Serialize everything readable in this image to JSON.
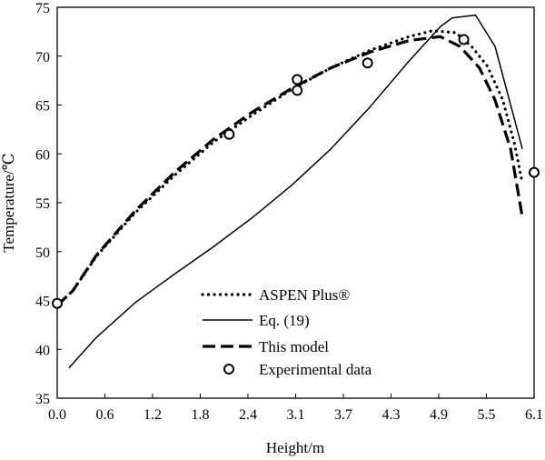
{
  "chart_data": {
    "type": "line",
    "title": "",
    "xlabel": "Height/m",
    "ylabel": "Temperature/℃",
    "xlim": [
      0.0,
      6.1
    ],
    "ylim": [
      35,
      75
    ],
    "xticks": [
      "0.0",
      "0.6",
      "1.2",
      "1.8",
      "2.4",
      "3.1",
      "3.7",
      "4.3",
      "4.9",
      "5.5",
      "6.1"
    ],
    "yticks": [
      "35",
      "40",
      "45",
      "50",
      "55",
      "60",
      "65",
      "70",
      "75"
    ],
    "grid": false,
    "legend_position": "bottom-center",
    "series": [
      {
        "name": "ASPEN Plus®",
        "style": "dotted",
        "points": [
          [
            0.0,
            44.5
          ],
          [
            0.2,
            46.0
          ],
          [
            0.5,
            49.5
          ],
          [
            1.0,
            54.0
          ],
          [
            1.5,
            57.8
          ],
          [
            2.0,
            61.2
          ],
          [
            2.5,
            64.0
          ],
          [
            3.0,
            66.6
          ],
          [
            3.5,
            68.8
          ],
          [
            4.0,
            70.6
          ],
          [
            4.5,
            72.0
          ],
          [
            4.8,
            72.6
          ],
          [
            5.1,
            72.4
          ],
          [
            5.3,
            71.0
          ],
          [
            5.5,
            69.0
          ],
          [
            5.7,
            65.5
          ],
          [
            5.85,
            61.0
          ],
          [
            5.95,
            57.0
          ]
        ]
      },
      {
        "name": "Eq. (19)",
        "style": "solid",
        "points": [
          [
            0.15,
            38.1
          ],
          [
            0.5,
            41.2
          ],
          [
            1.0,
            44.8
          ],
          [
            1.5,
            47.7
          ],
          [
            2.0,
            50.5
          ],
          [
            2.5,
            53.5
          ],
          [
            3.0,
            56.8
          ],
          [
            3.5,
            60.5
          ],
          [
            4.0,
            64.8
          ],
          [
            4.5,
            69.5
          ],
          [
            4.9,
            73.0
          ],
          [
            5.05,
            73.9
          ],
          [
            5.35,
            74.2
          ],
          [
            5.6,
            71.0
          ],
          [
            5.95,
            60.5
          ]
        ]
      },
      {
        "name": "This model",
        "style": "dashed",
        "points": [
          [
            0.0,
            44.5
          ],
          [
            0.2,
            46.0
          ],
          [
            0.5,
            49.6
          ],
          [
            1.0,
            54.2
          ],
          [
            1.5,
            58.1
          ],
          [
            2.0,
            61.5
          ],
          [
            2.5,
            64.3
          ],
          [
            3.0,
            66.7
          ],
          [
            3.5,
            68.8
          ],
          [
            4.0,
            70.4
          ],
          [
            4.5,
            71.6
          ],
          [
            4.9,
            72.0
          ],
          [
            5.15,
            71.0
          ],
          [
            5.4,
            68.8
          ],
          [
            5.6,
            65.5
          ],
          [
            5.8,
            60.5
          ],
          [
            5.95,
            53.5
          ]
        ]
      },
      {
        "name": "Experimental data",
        "style": "markers",
        "points": [
          [
            0.0,
            44.7
          ],
          [
            2.2,
            62.0
          ],
          [
            3.07,
            66.5
          ],
          [
            3.07,
            67.6
          ],
          [
            3.97,
            69.3
          ],
          [
            5.2,
            71.7
          ],
          [
            6.1,
            58.1
          ]
        ]
      }
    ]
  }
}
